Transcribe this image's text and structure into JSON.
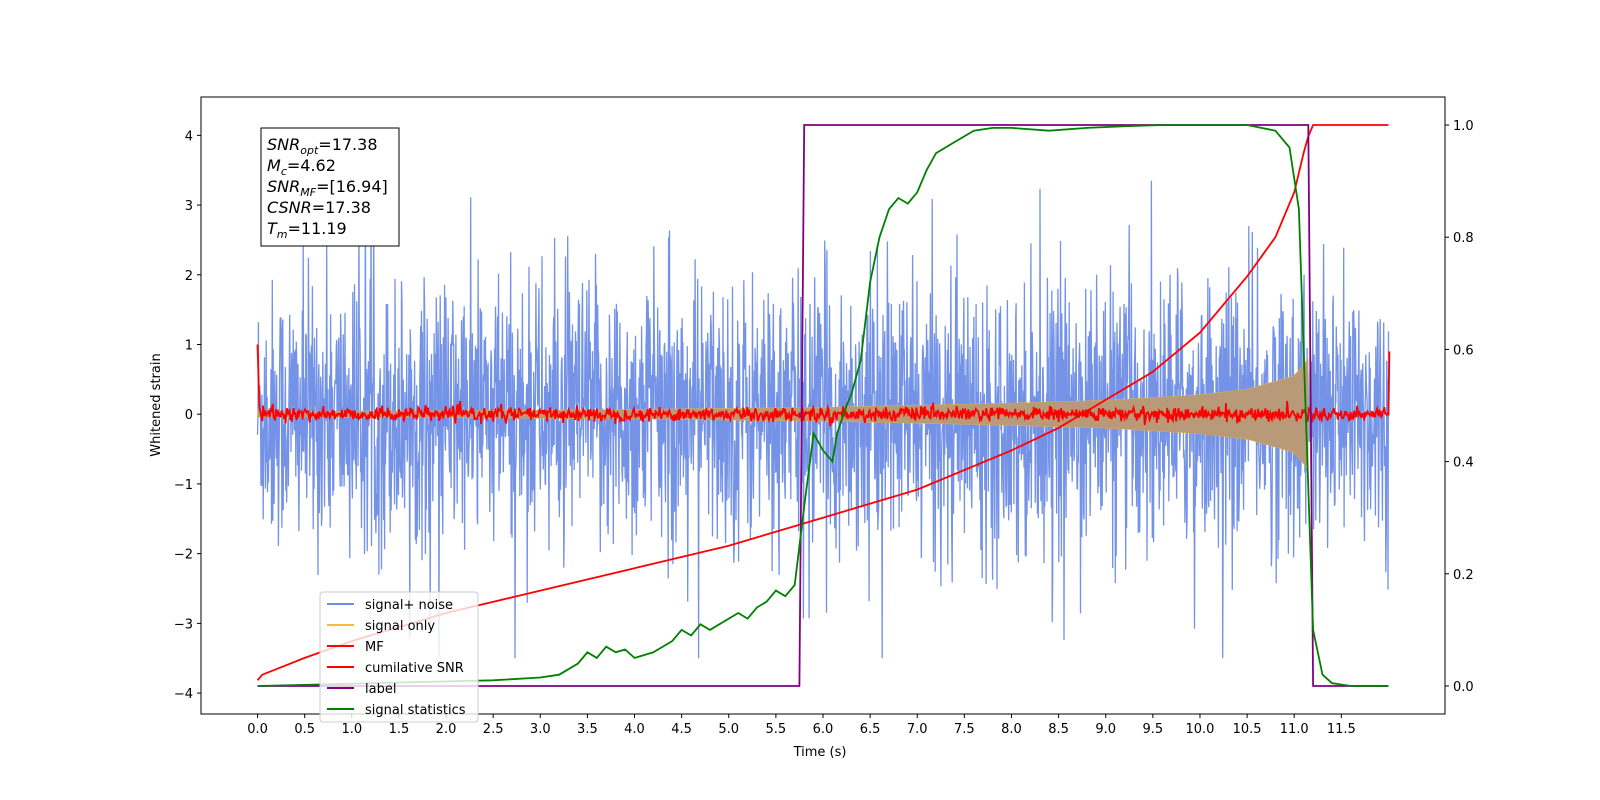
{
  "chart_data": {
    "type": "line",
    "xlabel": "Time (s)",
    "ylabel": "Whitened strain",
    "xlim": [
      -0.6,
      12.6
    ],
    "ylim": [
      -4.3,
      4.55
    ],
    "ylim_right": [
      -0.05,
      1.05
    ],
    "x_ticks": [
      "0.0",
      "0.5",
      "1.0",
      "1.5",
      "2.0",
      "2.5",
      "3.0",
      "3.5",
      "4.0",
      "4.5",
      "5.0",
      "5.5",
      "6.0",
      "6.5",
      "7.0",
      "7.5",
      "8.0",
      "8.5",
      "9.0",
      "9.5",
      "10.0",
      "10.5",
      "11.0",
      "11.5"
    ],
    "y_ticks_left": [
      "−4",
      "−3",
      "−2",
      "−1",
      "0",
      "1",
      "2",
      "3",
      "4"
    ],
    "y_ticks_right": [
      "0.0",
      "0.2",
      "0.4",
      "0.6",
      "0.8",
      "1.0"
    ],
    "grid": false,
    "legend_position": "lower-left",
    "colors": {
      "signal_noise": "#6d8de6",
      "signal_only": "#ffb833",
      "signal_fill": "#b89a78",
      "mf": "#ff0000",
      "cumulative": "#ff0000",
      "label": "#800080",
      "stats": "#008000"
    },
    "annotation": {
      "lines": [
        {
          "sym": "SNR",
          "sub": "opt",
          "val": "=17.38"
        },
        {
          "sym": "M",
          "sub": "c",
          "val": "=4.62"
        },
        {
          "sym": "SNR",
          "sub": "MF",
          "val": "=[16.94]"
        },
        {
          "sym": "CSNR",
          "sub": "",
          "val": "=17.38"
        },
        {
          "sym": "T",
          "sub": "m",
          "val": "=11.19"
        }
      ]
    },
    "series": [
      {
        "name": "signal+ noise",
        "axis": "left",
        "description_range": [
          -3.5,
          3.35
        ],
        "x_range": [
          0.0,
          12.0
        ]
      },
      {
        "name": "signal only",
        "axis": "left",
        "envelope": {
          "x": [
            0.0,
            2.0,
            4.0,
            6.0,
            8.0,
            9.0,
            10.0,
            10.5,
            11.0,
            11.15
          ],
          "amp": [
            0.04,
            0.05,
            0.07,
            0.1,
            0.16,
            0.2,
            0.28,
            0.36,
            0.55,
            0.8
          ]
        }
      },
      {
        "name": "MF",
        "axis": "left",
        "x": [
          0.0,
          0.02,
          0.05,
          12.0,
          12.01
        ],
        "y": [
          1.0,
          0.1,
          0.0,
          0.0,
          0.9
        ],
        "noise_amp": 0.05
      },
      {
        "name": "cumilative SNR",
        "axis": "right",
        "x": [
          0.0,
          0.05,
          0.5,
          1.0,
          2.0,
          3.0,
          4.0,
          5.0,
          6.0,
          7.0,
          8.0,
          8.5,
          9.0,
          9.5,
          10.0,
          10.5,
          10.8,
          11.0,
          11.1,
          11.15,
          11.2,
          12.0
        ],
        "y": [
          0.01,
          0.02,
          0.05,
          0.08,
          0.13,
          0.17,
          0.21,
          0.25,
          0.3,
          0.35,
          0.42,
          0.46,
          0.51,
          0.56,
          0.63,
          0.73,
          0.8,
          0.88,
          0.95,
          0.98,
          1.0,
          1.0
        ]
      },
      {
        "name": "label",
        "axis": "right",
        "x": [
          0.0,
          5.75,
          5.8,
          11.15,
          11.2,
          12.0
        ],
        "y": [
          0.0,
          0.0,
          1.0,
          1.0,
          0.0,
          0.0
        ]
      },
      {
        "name": "signal statistics",
        "axis": "right",
        "x": [
          0.0,
          2.5,
          3.0,
          3.2,
          3.4,
          3.5,
          3.6,
          3.7,
          3.8,
          3.9,
          4.0,
          4.2,
          4.4,
          4.5,
          4.6,
          4.7,
          4.8,
          5.0,
          5.1,
          5.2,
          5.3,
          5.4,
          5.5,
          5.6,
          5.7,
          5.8,
          5.9,
          6.0,
          6.1,
          6.15,
          6.25,
          6.3,
          6.35,
          6.4,
          6.5,
          6.6,
          6.7,
          6.8,
          6.9,
          7.0,
          7.1,
          7.2,
          7.4,
          7.6,
          7.8,
          8.0,
          8.4,
          8.8,
          9.2,
          9.6,
          10.0,
          10.5,
          10.8,
          10.95,
          11.05,
          11.1,
          11.2,
          11.3,
          11.4,
          11.6,
          12.0
        ],
        "y": [
          0.0,
          0.01,
          0.015,
          0.02,
          0.04,
          0.06,
          0.05,
          0.07,
          0.06,
          0.065,
          0.05,
          0.06,
          0.08,
          0.1,
          0.09,
          0.11,
          0.1,
          0.12,
          0.13,
          0.12,
          0.14,
          0.15,
          0.17,
          0.16,
          0.18,
          0.32,
          0.45,
          0.42,
          0.4,
          0.45,
          0.5,
          0.52,
          0.55,
          0.58,
          0.72,
          0.8,
          0.85,
          0.87,
          0.86,
          0.88,
          0.92,
          0.95,
          0.97,
          0.99,
          0.995,
          0.995,
          0.99,
          0.995,
          0.998,
          1.0,
          1.0,
          1.0,
          0.99,
          0.96,
          0.85,
          0.6,
          0.1,
          0.02,
          0.005,
          0.0,
          0.0
        ]
      }
    ]
  }
}
